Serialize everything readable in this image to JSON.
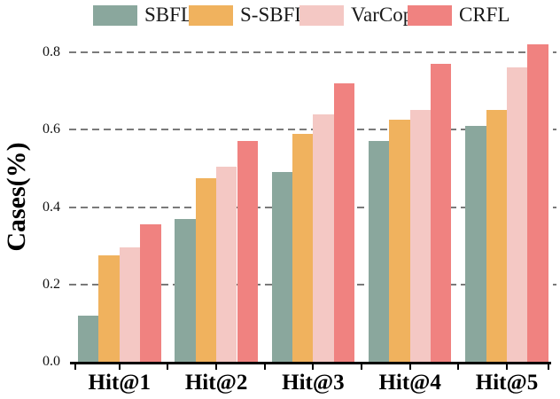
{
  "chart_data": {
    "type": "bar",
    "title": "",
    "xlabel": "",
    "ylabel": "Cases(%)",
    "categories": [
      "Hit@1",
      "Hit@2",
      "Hit@3",
      "Hit@4",
      "Hit@5"
    ],
    "series": [
      {
        "name": "SBFL",
        "color": "#8AA79D",
        "values": [
          0.12,
          0.37,
          0.49,
          0.57,
          0.61
        ]
      },
      {
        "name": "S-SBFL",
        "color": "#F0B25E",
        "values": [
          0.275,
          0.475,
          0.59,
          0.625,
          0.65
        ]
      },
      {
        "name": "VarCop",
        "color": "#F4C8C4",
        "values": [
          0.295,
          0.505,
          0.64,
          0.65,
          0.76
        ]
      },
      {
        "name": "CRFL",
        "color": "#F08280",
        "values": [
          0.355,
          0.57,
          0.72,
          0.77,
          0.82
        ]
      }
    ],
    "ylim": [
      0.0,
      0.84
    ],
    "yticks": [
      0.0,
      0.2,
      0.4,
      0.6,
      0.8
    ],
    "ytick_labels": [
      "0.0",
      "0.2",
      "0.4",
      "0.6",
      "0.8"
    ],
    "grid": "horizontal-dashed",
    "legend_position": "top-center"
  },
  "colors": {
    "gridline": "#7a7a7a",
    "axis": "#000000",
    "text": "#000000",
    "background": "#ffffff"
  }
}
